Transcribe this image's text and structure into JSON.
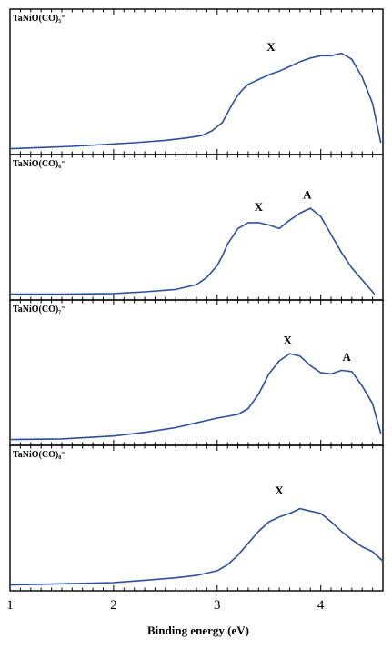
{
  "chart_data": [
    {
      "type": "line",
      "panel_label": "TaNiO(CO)₅⁻",
      "xlim": [
        1,
        4.6
      ],
      "xlabel": "Binding energy (eV)",
      "series": [
        {
          "x": [
            1.0,
            1.3,
            1.6,
            1.9,
            2.2,
            2.5,
            2.7,
            2.85,
            2.95,
            3.05,
            3.1,
            3.15,
            3.2,
            3.25,
            3.3,
            3.4,
            3.5,
            3.6,
            3.7,
            3.8,
            3.9,
            4.0,
            4.1,
            4.2,
            4.3,
            4.4,
            4.5,
            4.58
          ],
          "y": [
            0.0,
            0.01,
            0.02,
            0.035,
            0.05,
            0.07,
            0.09,
            0.11,
            0.15,
            0.22,
            0.3,
            0.38,
            0.45,
            0.5,
            0.54,
            0.58,
            0.62,
            0.65,
            0.69,
            0.73,
            0.76,
            0.78,
            0.78,
            0.8,
            0.75,
            0.6,
            0.38,
            0.05
          ]
        }
      ],
      "annotations": [
        {
          "text": "X",
          "x": 3.52,
          "y": 0.82
        }
      ]
    },
    {
      "type": "line",
      "panel_label": "TaNiO(CO)₆⁻",
      "xlim": [
        1,
        4.6
      ],
      "xlabel": "Binding energy (eV)",
      "series": [
        {
          "x": [
            1.0,
            1.5,
            2.0,
            2.3,
            2.6,
            2.8,
            2.9,
            3.0,
            3.05,
            3.1,
            3.2,
            3.3,
            3.4,
            3.5,
            3.6,
            3.7,
            3.8,
            3.9,
            4.0,
            4.1,
            4.2,
            4.3,
            4.4,
            4.5,
            4.52
          ],
          "y": [
            0.0,
            0.0,
            0.005,
            0.02,
            0.04,
            0.08,
            0.14,
            0.24,
            0.32,
            0.42,
            0.55,
            0.6,
            0.6,
            0.58,
            0.55,
            0.62,
            0.68,
            0.72,
            0.65,
            0.5,
            0.35,
            0.22,
            0.12,
            0.02,
            0.0
          ]
        }
      ],
      "annotations": [
        {
          "text": "X",
          "x": 3.4,
          "y": 0.7
        },
        {
          "text": "A",
          "x": 3.87,
          "y": 0.8
        }
      ]
    },
    {
      "type": "line",
      "panel_label": "TaNiO(CO)₇⁻",
      "xlim": [
        1,
        4.6
      ],
      "xlabel": "Binding energy (eV)",
      "series": [
        {
          "x": [
            1.0,
            1.5,
            2.0,
            2.3,
            2.6,
            2.8,
            3.0,
            3.2,
            3.3,
            3.4,
            3.5,
            3.6,
            3.7,
            3.8,
            3.9,
            4.0,
            4.1,
            4.2,
            4.3,
            4.4,
            4.5,
            4.58
          ],
          "y": [
            0.0,
            0.005,
            0.03,
            0.06,
            0.1,
            0.14,
            0.18,
            0.21,
            0.26,
            0.38,
            0.55,
            0.66,
            0.72,
            0.7,
            0.62,
            0.56,
            0.55,
            0.58,
            0.57,
            0.45,
            0.3,
            0.05
          ]
        }
      ],
      "annotations": [
        {
          "text": "X",
          "x": 3.68,
          "y": 0.8
        },
        {
          "text": "A",
          "x": 4.25,
          "y": 0.66
        }
      ]
    },
    {
      "type": "line",
      "panel_label": "TaNiO(CO)₈⁻",
      "xlim": [
        1,
        4.6
      ],
      "xlabel": "Binding energy (eV)",
      "series": [
        {
          "x": [
            1.0,
            1.5,
            2.0,
            2.3,
            2.6,
            2.8,
            3.0,
            3.1,
            3.2,
            3.3,
            3.4,
            3.5,
            3.6,
            3.7,
            3.8,
            3.9,
            4.0,
            4.1,
            4.2,
            4.3,
            4.4,
            4.5,
            4.6
          ],
          "y": [
            0.0,
            0.01,
            0.02,
            0.04,
            0.06,
            0.08,
            0.12,
            0.17,
            0.25,
            0.35,
            0.45,
            0.53,
            0.57,
            0.6,
            0.64,
            0.62,
            0.6,
            0.53,
            0.45,
            0.38,
            0.32,
            0.28,
            0.2
          ]
        }
      ],
      "annotations": [
        {
          "text": "X",
          "x": 3.6,
          "y": 0.76
        }
      ]
    }
  ],
  "x_axis": {
    "ticks": [
      1,
      2,
      3,
      4
    ],
    "tick_labels": [
      "1",
      "2",
      "3",
      "4"
    ],
    "title": "Binding energy (eV)"
  },
  "colors": {
    "trace": "#2a4fa0",
    "frame": "#000000"
  }
}
